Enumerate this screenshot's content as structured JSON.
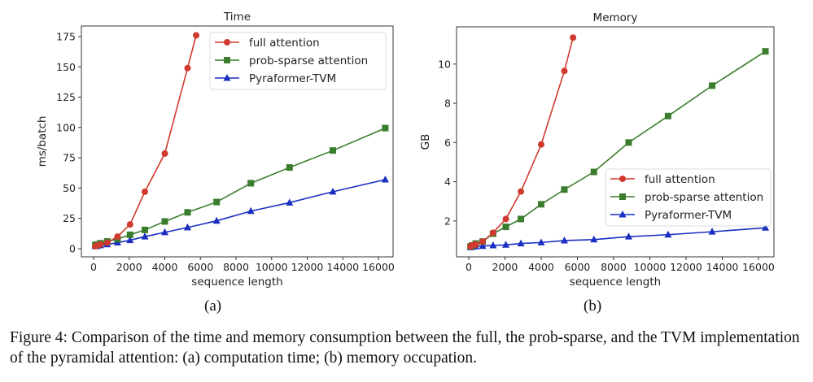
{
  "chart_data": [
    {
      "type": "line",
      "title": "Time",
      "xlabel": "sequence length",
      "ylabel": "ms/batch",
      "xlim": [
        -686,
        16823
      ],
      "ylim": [
        -6.7,
        183.7
      ],
      "xticks": [
        0,
        2000,
        4000,
        6000,
        8000,
        10000,
        12000,
        14000,
        16000
      ],
      "yticks": [
        0,
        25,
        50,
        75,
        100,
        125,
        150,
        175
      ],
      "legend": "top-right",
      "series": [
        {
          "name": "full attention",
          "color": "#d03a2e",
          "marker": "circle",
          "x": [
            96,
            192,
            384,
            768,
            1344,
            2048,
            2880,
            4000,
            5280,
            5760
          ],
          "y": [
            2,
            2.5,
            3.5,
            5,
            10,
            20,
            47,
            78.5,
            149,
            176
          ]
        },
        {
          "name": "prob-sparse attention",
          "color": "#3a7d2c",
          "marker": "square",
          "x": [
            96,
            192,
            384,
            768,
            1344,
            2048,
            2880,
            4000,
            5280,
            6912,
            8832,
            11008,
            13440,
            16384
          ],
          "y": [
            3,
            3.5,
            4.5,
            6,
            8,
            11.5,
            15.5,
            22.5,
            30,
            38.5,
            54,
            67,
            81,
            99.5
          ]
        },
        {
          "name": "Pyraformer-TVM",
          "color": "#1a2fc0",
          "marker": "triangle",
          "x": [
            96,
            192,
            384,
            768,
            1344,
            2048,
            2880,
            4000,
            5280,
            6912,
            8832,
            11008,
            13440,
            16384
          ],
          "y": [
            2,
            2.2,
            2.8,
            3.5,
            5,
            7,
            10,
            13.5,
            17.5,
            23,
            31,
            38,
            47,
            57
          ]
        }
      ]
    },
    {
      "type": "line",
      "title": "Memory",
      "xlabel": "sequence length",
      "ylabel": "GB",
      "xlim": [
        -674,
        16854
      ],
      "ylim": [
        0.17,
        11.9
      ],
      "xticks": [
        0,
        2000,
        4000,
        6000,
        8000,
        10000,
        12000,
        14000,
        16000
      ],
      "yticks": [
        2,
        4,
        6,
        8,
        10
      ],
      "legend": "center-right",
      "series": [
        {
          "name": "full attention",
          "color": "#d03a2e",
          "marker": "circle",
          "x": [
            96,
            192,
            384,
            768,
            1344,
            2048,
            2880,
            4000,
            5280,
            5760
          ],
          "y": [
            0.7,
            0.75,
            0.8,
            0.95,
            1.4,
            2.1,
            3.5,
            5.9,
            9.65,
            11.35
          ]
        },
        {
          "name": "prob-sparse attention",
          "color": "#3a7d2c",
          "marker": "square",
          "x": [
            96,
            192,
            384,
            768,
            1344,
            2048,
            2880,
            4000,
            5280,
            6912,
            8832,
            11008,
            13440,
            16384
          ],
          "y": [
            0.7,
            0.75,
            0.85,
            0.95,
            1.35,
            1.7,
            2.1,
            2.85,
            3.6,
            4.5,
            6.0,
            7.35,
            8.9,
            10.65
          ]
        },
        {
          "name": "Pyraformer-TVM",
          "color": "#1a2fc0",
          "marker": "triangle",
          "x": [
            96,
            192,
            384,
            768,
            1344,
            2048,
            2880,
            4000,
            5280,
            6912,
            8832,
            11008,
            13440,
            16384
          ],
          "y": [
            0.65,
            0.68,
            0.7,
            0.72,
            0.75,
            0.78,
            0.85,
            0.9,
            1.0,
            1.05,
            1.2,
            1.3,
            1.45,
            1.65
          ]
        }
      ]
    }
  ],
  "subcaptions": [
    "(a)",
    "(b)"
  ],
  "caption": "Figure 4: Comparison of the time and memory consumption between the full, the prob-sparse, and the TVM implementation of the pyramidal attention: (a) computation time; (b) memory occupation."
}
